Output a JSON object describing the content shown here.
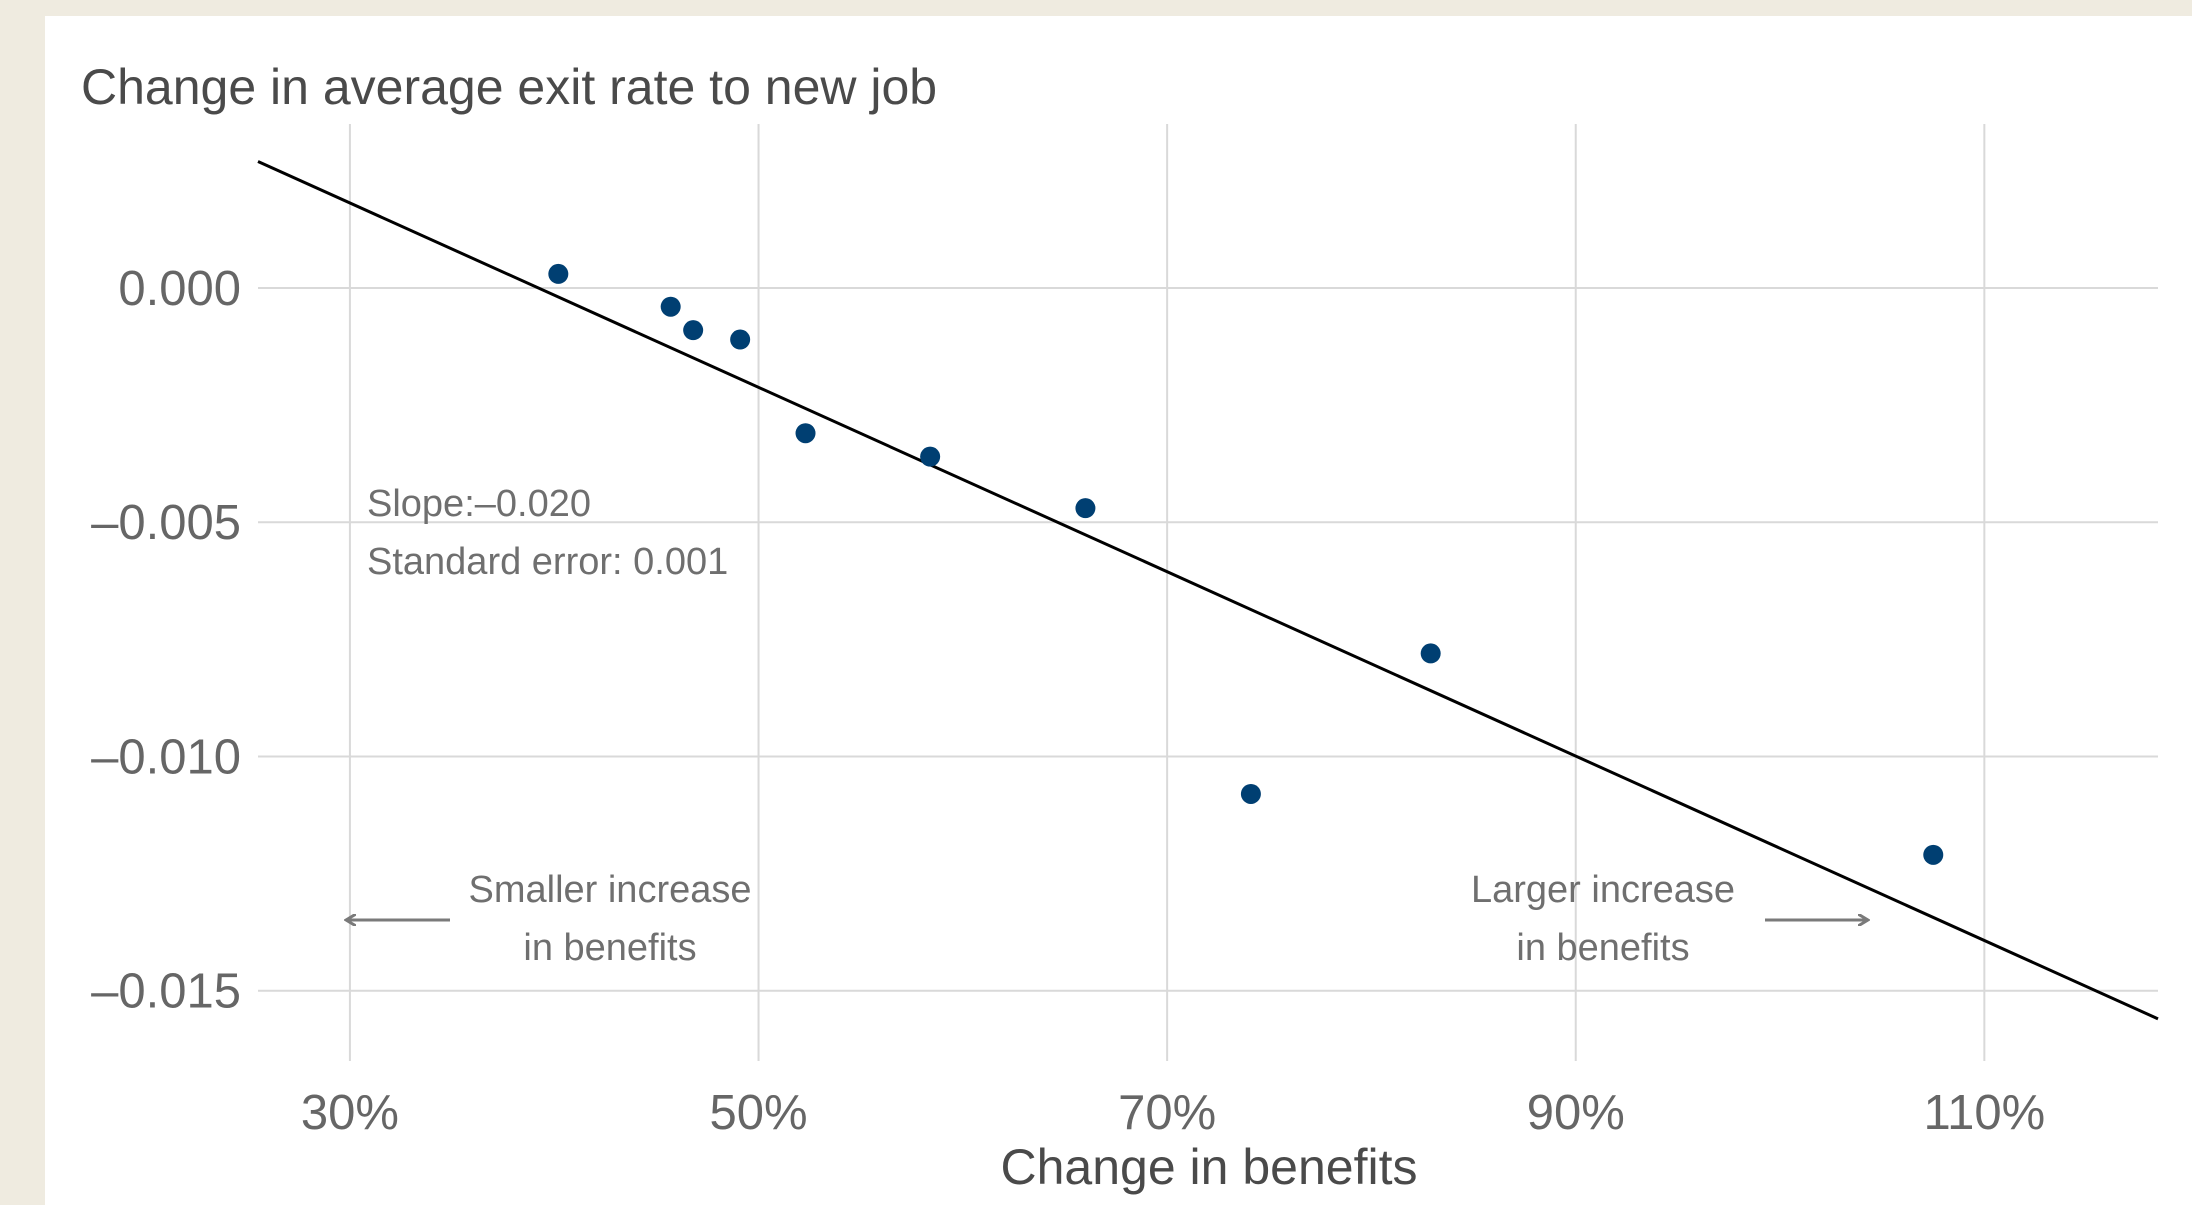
{
  "chart_data": {
    "type": "scatter",
    "title": "Change in average exit rate to new job",
    "xlabel": "Change in benefits",
    "ylabel": "",
    "xlim": [
      0.255,
      1.185
    ],
    "ylim": [
      -0.0165,
      0.0035
    ],
    "x_ticks": [
      0.3,
      0.5,
      0.7,
      0.9,
      1.1
    ],
    "x_tick_labels": [
      "30%",
      "50%",
      "70%",
      "90%",
      "110%"
    ],
    "y_ticks": [
      0.0,
      -0.005,
      -0.01,
      -0.015
    ],
    "y_tick_labels": [
      "0.000",
      "–0.005",
      "–0.010",
      "–0.015"
    ],
    "grid": true,
    "point_color": "#003f72",
    "line_color": "#000000",
    "points": [
      {
        "x": 0.402,
        "y": 0.0003
      },
      {
        "x": 0.457,
        "y": -0.0004
      },
      {
        "x": 0.468,
        "y": -0.0009
      },
      {
        "x": 0.491,
        "y": -0.0011
      },
      {
        "x": 0.523,
        "y": -0.0031
      },
      {
        "x": 0.584,
        "y": -0.0036
      },
      {
        "x": 0.66,
        "y": -0.0047
      },
      {
        "x": 0.741,
        "y": -0.0108
      },
      {
        "x": 0.829,
        "y": -0.0078
      },
      {
        "x": 1.075,
        "y": -0.0121
      }
    ],
    "fit_line": {
      "x": [
        0.255,
        1.185
      ],
      "y": [
        0.0027,
        -0.0156
      ]
    },
    "annotations": {
      "slope": "Slope:–0.020",
      "stderr": "Standard error: 0.001",
      "left_line1": "Smaller increase",
      "left_line2": "in benefits",
      "right_line1": "Larger increase",
      "right_line2": "in benefits"
    }
  }
}
